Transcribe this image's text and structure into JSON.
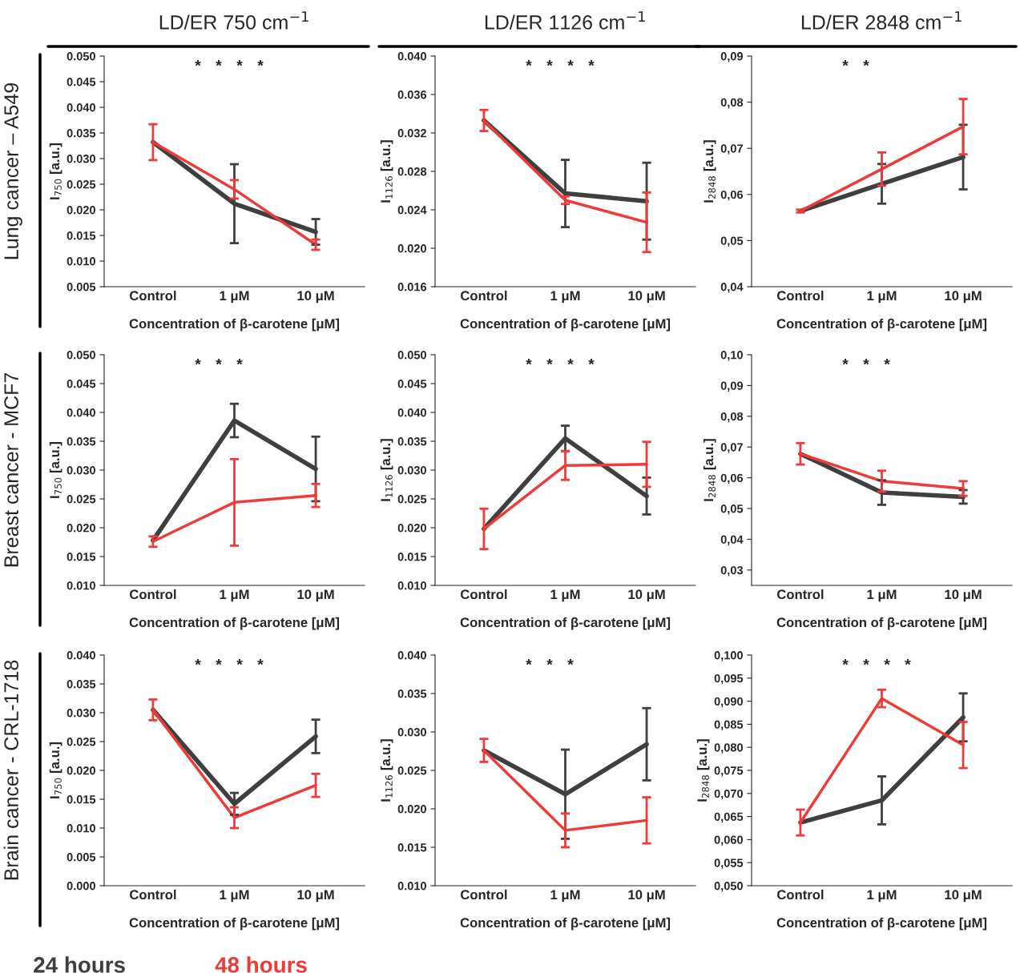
{
  "chart_data": [
    {
      "type": "line",
      "title": "LD/ER 750 cm$^{−1}$",
      "ylabel": "I$_{750}$ [a.u.]",
      "xlabel": "Concentration of β-carotene [μM]",
      "categories": [
        "Control",
        "1 μM",
        "10 μM"
      ],
      "series": [
        {
          "color": "#3f3f3f",
          "values": [
            0.0332,
            0.0212,
            0.0157
          ],
          "errors": [
            null,
            0.0077,
            0.0025
          ]
        },
        {
          "color": "#ef3a3a",
          "values": [
            0.0332,
            0.024,
            0.0132
          ],
          "errors": [
            0.0035,
            0.0018,
            0.001
          ]
        }
      ],
      "ylim": [
        0.005,
        0.05
      ],
      "yticks": [
        {
          "value": 0.005,
          "label": "0.005"
        },
        {
          "value": 0.01,
          "label": "0.010"
        },
        {
          "value": 0.015,
          "label": "0.015"
        },
        {
          "value": 0.02,
          "label": "0.020"
        },
        {
          "value": 0.025,
          "label": "0.025"
        },
        {
          "value": 0.03,
          "label": "0.030"
        },
        {
          "value": 0.035,
          "label": "0.035"
        },
        {
          "value": 0.04,
          "label": "0.040"
        },
        {
          "value": 0.045,
          "label": "0.045"
        },
        {
          "value": 0.05,
          "label": "0.050"
        }
      ],
      "annotations": [
        "Lung cancer – A549",
        "*",
        "*",
        "*",
        "*"
      ]
    },
    {
      "type": "line",
      "title": "LD/ER 1126 cm$^{−1}$",
      "ylabel": "I$_{1126}$ [a.u.]",
      "xlabel": "Concentration of β-carotene [μM]",
      "categories": [
        "Control",
        "1 μM",
        "10 μM"
      ],
      "series": [
        {
          "color": "#3f3f3f",
          "values": [
            0.0333,
            0.0257,
            0.0249
          ],
          "errors": [
            null,
            0.0035,
            0.004
          ]
        },
        {
          "color": "#ef3a3a",
          "values": [
            0.0333,
            0.025,
            0.0227
          ],
          "errors": [
            0.0011,
            0.0004,
            0.0031
          ]
        }
      ],
      "ylim": [
        0.016,
        0.04
      ],
      "yticks": [
        {
          "value": 0.016,
          "label": "0.016"
        },
        {
          "value": 0.02,
          "label": "0.020"
        },
        {
          "value": 0.024,
          "label": "0.024"
        },
        {
          "value": 0.028,
          "label": "0.028"
        },
        {
          "value": 0.032,
          "label": "0.032"
        },
        {
          "value": 0.036,
          "label": "0.036"
        },
        {
          "value": 0.04,
          "label": "0.040"
        }
      ],
      "annotations": [
        "*",
        "*",
        "*",
        "*"
      ]
    },
    {
      "type": "line",
      "title": "LD/ER 2848 cm$^{−1}$",
      "ylabel": "I$_{2848}$ [a.u.]",
      "xlabel": "Concentration of β-carotene [μM]",
      "categories": [
        "Control",
        "1 μM",
        "10 μM"
      ],
      "series": [
        {
          "color": "#3f3f3f",
          "values": [
            0.0564,
            0.0623,
            0.0681
          ],
          "errors": [
            null,
            0.0043,
            0.007
          ]
        },
        {
          "color": "#ef3a3a",
          "values": [
            0.0564,
            0.0655,
            0.0747
          ],
          "errors": [
            0.0003,
            0.0036,
            0.006
          ]
        }
      ],
      "ylim": [
        0.04,
        0.09
      ],
      "yticks": [
        {
          "value": 0.04,
          "label": "0,04"
        },
        {
          "value": 0.05,
          "label": "0,05"
        },
        {
          "value": 0.06,
          "label": "0,06"
        },
        {
          "value": 0.07,
          "label": "0,07"
        },
        {
          "value": 0.08,
          "label": "0,08"
        },
        {
          "value": 0.09,
          "label": "0,09"
        }
      ],
      "annotations": [
        "*",
        "*"
      ]
    },
    {
      "type": "line",
      "ylabel": "I$_{750}$ [a.u.]",
      "xlabel": "Concentration of β-carotene [μM]",
      "categories": [
        "Control",
        "1 μM",
        "10 μM"
      ],
      "series": [
        {
          "color": "#3f3f3f",
          "values": [
            0.0178,
            0.0386,
            0.0302
          ],
          "errors": [
            null,
            0.0029,
            0.0056
          ]
        },
        {
          "color": "#ef3a3a",
          "values": [
            0.0176,
            0.0244,
            0.0256
          ],
          "errors": [
            0.0009,
            0.0075,
            0.002
          ]
        }
      ],
      "ylim": [
        0.01,
        0.05
      ],
      "yticks": [
        {
          "value": 0.01,
          "label": "0.010"
        },
        {
          "value": 0.015,
          "label": "0.015"
        },
        {
          "value": 0.02,
          "label": "0.020"
        },
        {
          "value": 0.025,
          "label": "0.025"
        },
        {
          "value": 0.03,
          "label": "0.030"
        },
        {
          "value": 0.035,
          "label": "0.035"
        },
        {
          "value": 0.04,
          "label": "0.040"
        },
        {
          "value": 0.045,
          "label": "0.045"
        },
        {
          "value": 0.05,
          "label": "0.050"
        }
      ],
      "annotations": [
        "Breast cancer - MCF7",
        "*",
        "*",
        "*"
      ]
    },
    {
      "type": "line",
      "ylabel": "I$_{1126}$ [a.u.]",
      "xlabel": "Concentration of β-carotene [μM]",
      "categories": [
        "Control",
        "1 μM",
        "10 μM"
      ],
      "series": [
        {
          "color": "#3f3f3f",
          "values": [
            0.0198,
            0.0355,
            0.0255
          ],
          "errors": [
            null,
            0.0022,
            0.0032
          ]
        },
        {
          "color": "#ef3a3a",
          "values": [
            0.0198,
            0.0308,
            0.031
          ],
          "errors": [
            0.0035,
            0.0025,
            0.0039
          ]
        }
      ],
      "ylim": [
        0.01,
        0.05
      ],
      "yticks": [
        {
          "value": 0.01,
          "label": "0.010"
        },
        {
          "value": 0.015,
          "label": "0.015"
        },
        {
          "value": 0.02,
          "label": "0.020"
        },
        {
          "value": 0.025,
          "label": "0.025"
        },
        {
          "value": 0.03,
          "label": "0.030"
        },
        {
          "value": 0.035,
          "label": "0.035"
        },
        {
          "value": 0.04,
          "label": "0.040"
        },
        {
          "value": 0.045,
          "label": "0.045"
        },
        {
          "value": 0.05,
          "label": "0.050"
        }
      ],
      "annotations": [
        "*",
        "*",
        "*",
        "*"
      ]
    },
    {
      "type": "line",
      "ylabel": "I$_{2848}$ [a.u.]",
      "xlabel": "Concentration of β-carotene [μM]",
      "categories": [
        "Control",
        "1 μM",
        "10 μM"
      ],
      "series": [
        {
          "color": "#3f3f3f",
          "values": [
            0.0678,
            0.0552,
            0.0538
          ],
          "errors": [
            null,
            0.004,
            0.0022
          ]
        },
        {
          "color": "#ef3a3a",
          "values": [
            0.0678,
            0.0589,
            0.0565
          ],
          "errors": [
            0.0035,
            0.0034,
            0.0024
          ]
        }
      ],
      "ylim": [
        0.025,
        0.1
      ],
      "yticks": [
        {
          "value": 0.03,
          "label": "0,03"
        },
        {
          "value": 0.04,
          "label": "0,04"
        },
        {
          "value": 0.05,
          "label": "0,05"
        },
        {
          "value": 0.06,
          "label": "0,06"
        },
        {
          "value": 0.07,
          "label": "0,07"
        },
        {
          "value": 0.08,
          "label": "0,08"
        },
        {
          "value": 0.09,
          "label": "0,09"
        },
        {
          "value": 0.1,
          "label": "0,10"
        }
      ],
      "annotations": [
        "*",
        "*",
        "*"
      ]
    },
    {
      "type": "line",
      "ylabel": "I$_{750}$ [a.u.]",
      "xlabel": "Concentration of β-carotene [μM]",
      "categories": [
        "Control",
        "1 μM",
        "10 μM"
      ],
      "legend": "bottom",
      "series": [
        {
          "name": "24 hours",
          "color": "#3f3f3f",
          "values": [
            0.0305,
            0.0142,
            0.0259
          ],
          "errors": [
            null,
            0.0019,
            0.0029
          ]
        },
        {
          "name": "48 hours",
          "color": "#ef3a3a",
          "values": [
            0.0305,
            0.0118,
            0.0174
          ],
          "errors": [
            0.0018,
            0.0018,
            0.002
          ]
        }
      ],
      "ylim": [
        0.0,
        0.04
      ],
      "yticks": [
        {
          "value": 0.0,
          "label": "0.000"
        },
        {
          "value": 0.005,
          "label": "0.005"
        },
        {
          "value": 0.01,
          "label": "0.010"
        },
        {
          "value": 0.015,
          "label": "0.015"
        },
        {
          "value": 0.02,
          "label": "0.020"
        },
        {
          "value": 0.025,
          "label": "0.025"
        },
        {
          "value": 0.03,
          "label": "0.030"
        },
        {
          "value": 0.035,
          "label": "0.035"
        },
        {
          "value": 0.04,
          "label": "0.040"
        }
      ],
      "annotations": [
        "Brain cancer - CRL-1718",
        "*",
        "*",
        "*",
        "*"
      ]
    },
    {
      "type": "line",
      "ylabel": "I$_{1126}$ [a.u.]",
      "xlabel": "Concentration of β-carotene [μM]",
      "categories": [
        "Control",
        "1 μM",
        "10 μM"
      ],
      "series": [
        {
          "color": "#3f3f3f",
          "values": [
            0.0276,
            0.0219,
            0.0284
          ],
          "errors": [
            null,
            0.0058,
            0.0047
          ]
        },
        {
          "color": "#ef3a3a",
          "values": [
            0.0276,
            0.0172,
            0.0185
          ],
          "errors": [
            0.0015,
            0.0022,
            0.003
          ]
        }
      ],
      "ylim": [
        0.01,
        0.04
      ],
      "yticks": [
        {
          "value": 0.01,
          "label": "0.010"
        },
        {
          "value": 0.015,
          "label": "0.015"
        },
        {
          "value": 0.02,
          "label": "0.020"
        },
        {
          "value": 0.025,
          "label": "0.025"
        },
        {
          "value": 0.03,
          "label": "0.030"
        },
        {
          "value": 0.035,
          "label": "0.035"
        },
        {
          "value": 0.04,
          "label": "0.040"
        }
      ],
      "annotations": [
        "*",
        "*",
        "*"
      ]
    },
    {
      "type": "line",
      "ylabel": "I$_{2848}$ [a.u.]",
      "xlabel": "Concentration of β-carotene [μM]",
      "categories": [
        "Control",
        "1 μM",
        "10 μM"
      ],
      "series": [
        {
          "color": "#3f3f3f",
          "values": [
            0.0637,
            0.0685,
            0.0865
          ],
          "errors": [
            null,
            0.0052,
            0.0052
          ]
        },
        {
          "color": "#ef3a3a",
          "values": [
            0.0637,
            0.0906,
            0.0805
          ],
          "errors": [
            0.0028,
            0.0019,
            0.005
          ]
        }
      ],
      "ylim": [
        0.05,
        0.1
      ],
      "yticks": [
        {
          "value": 0.05,
          "label": "0,050"
        },
        {
          "value": 0.055,
          "label": "0,055"
        },
        {
          "value": 0.06,
          "label": "0,060"
        },
        {
          "value": 0.065,
          "label": "0,065"
        },
        {
          "value": 0.07,
          "label": "0,070"
        },
        {
          "value": 0.075,
          "label": "0,075"
        },
        {
          "value": 0.08,
          "label": "0,080"
        },
        {
          "value": 0.085,
          "label": "0,085"
        },
        {
          "value": 0.09,
          "label": "0,090"
        },
        {
          "value": 0.095,
          "label": "0,095"
        },
        {
          "value": 0.1,
          "label": "0,100"
        }
      ],
      "annotations": [
        "*",
        "*",
        "*",
        "*"
      ]
    }
  ]
}
